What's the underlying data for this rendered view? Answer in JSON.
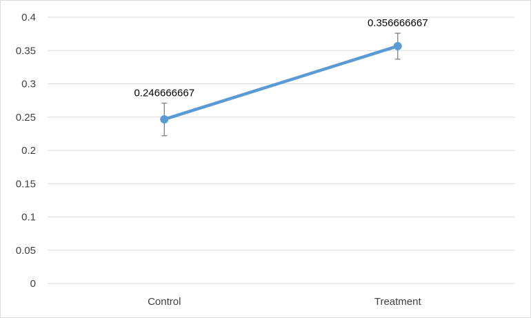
{
  "chart_data": {
    "type": "line",
    "title": "",
    "xlabel": "",
    "ylabel": "",
    "categories": [
      "Control",
      "Treatment"
    ],
    "series": [
      {
        "values": [
          0.246666667,
          0.356666667
        ],
        "labels": [
          "0.246666667",
          "0.356666667"
        ],
        "error_upper": [
          0.271,
          0.376
        ],
        "error_lower": [
          0.222,
          0.337
        ]
      }
    ],
    "ylim": [
      0,
      0.4
    ],
    "yticks": [
      "0",
      "0.05",
      "0.1",
      "0.15",
      "0.2",
      "0.25",
      "0.3",
      "0.35",
      "0.4"
    ],
    "ytick_values": [
      0,
      0.05,
      0.1,
      0.15,
      0.2,
      0.25,
      0.3,
      0.35,
      0.4
    ],
    "grid": true,
    "legend": "none",
    "colors": {
      "line": "#5b9bd5",
      "marker": "#5b9bd5",
      "error_bar": "#7f7f7f",
      "gridline": "#d9d9d9",
      "axis_text": "#404040"
    }
  }
}
